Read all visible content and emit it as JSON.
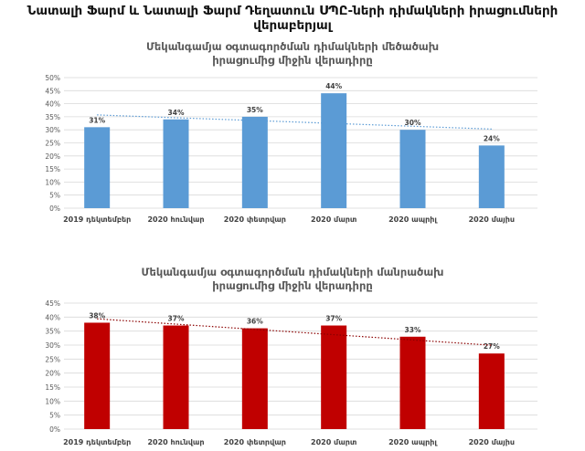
{
  "title": "Նատալի Ֆարմ և Նատալի Ֆարմ Դեղատուն ՍՊԸ-ների դիմակների իրացումների վերաբերյալ",
  "chart_data": [
    {
      "type": "bar",
      "title": "Մեկանգամյա օգտագործման դիմակների մեծածախ իրացումից միջին վերադիրը",
      "categories": [
        "2019 դեկտեմբեր",
        "2020 հունվար",
        "2020 փետրվար",
        "2020 մարտ",
        "2020 ապրիլ",
        "2020 մայիս"
      ],
      "values": [
        31,
        34,
        35,
        44,
        30,
        24
      ],
      "data_labels": [
        "31%",
        "34%",
        "35%",
        "44%",
        "30%",
        "24%"
      ],
      "yticks": [
        "0%",
        "5%",
        "10%",
        "15%",
        "20%",
        "25%",
        "30%",
        "35%",
        "40%",
        "45%",
        "50%"
      ],
      "ylim": [
        0,
        50
      ],
      "trendline": "linear, dotted",
      "color": "#5B9BD5",
      "trend_color": "#5B9BD5"
    },
    {
      "type": "bar",
      "title": "Մեկանգամյա օգտագործման դիմակների մանրածախ իրացումից միջին վերադիրը",
      "categories": [
        "2019 դեկտեմբեր",
        "2020 հունվար",
        "2020 փետրվար",
        "2020 մարտ",
        "2020 ապրիլ",
        "2020 մայիս"
      ],
      "values": [
        38,
        37,
        36,
        37,
        33,
        27
      ],
      "data_labels": [
        "38%",
        "37%",
        "36%",
        "37%",
        "33%",
        "27%"
      ],
      "yticks": [
        "0%",
        "5%",
        "10%",
        "15%",
        "20%",
        "25%",
        "30%",
        "35%",
        "40%",
        "45%"
      ],
      "ylim": [
        0,
        45
      ],
      "trendline": "linear, dotted",
      "color": "#C00000",
      "trend_color": "#8B0000"
    }
  ]
}
